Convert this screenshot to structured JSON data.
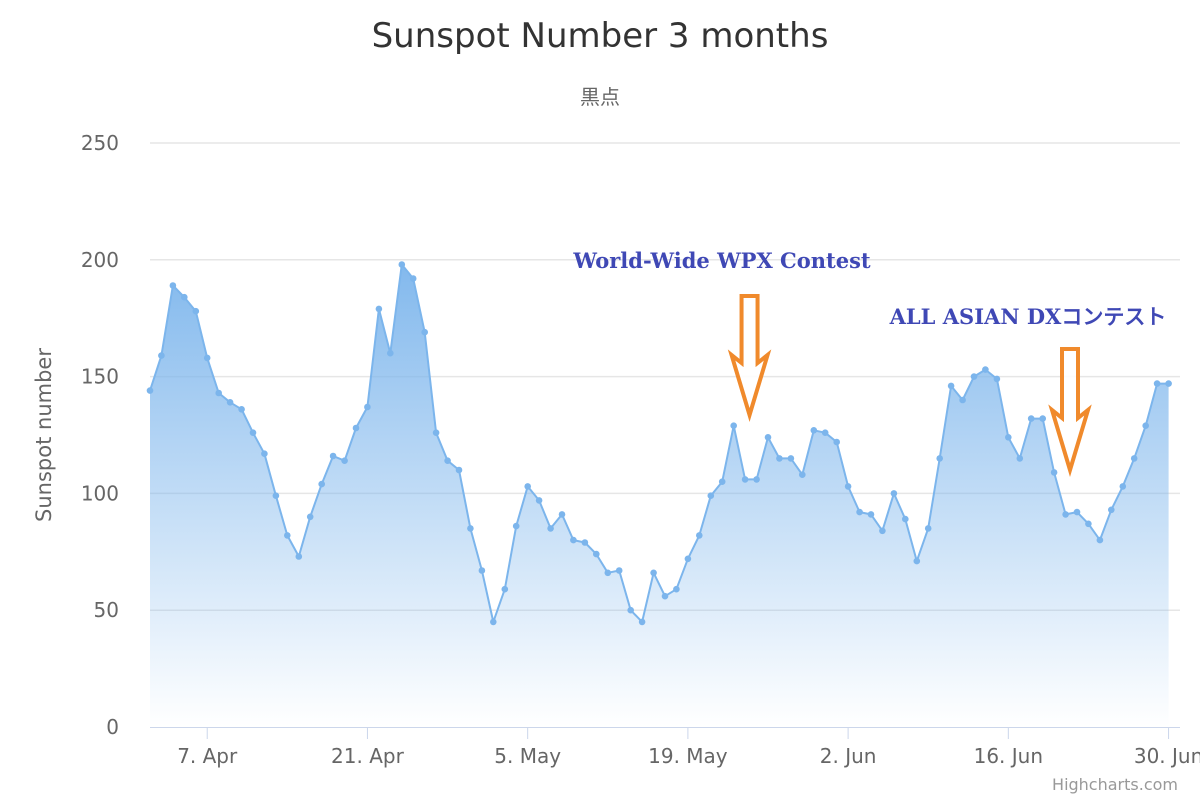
{
  "chart_data": {
    "type": "area",
    "title": "Sunspot Number 3 months",
    "subtitle": "黒点",
    "ylabel": "Sunspot number",
    "xlabel": "",
    "ylim": [
      0,
      250
    ],
    "yticks": [
      0,
      50,
      100,
      150,
      200,
      250
    ],
    "x_start": "2019-04-02",
    "x_end": "2019-07-01",
    "xticks": [
      {
        "date": "2019-04-07",
        "label": "7. Apr"
      },
      {
        "date": "2019-04-21",
        "label": "21. Apr"
      },
      {
        "date": "2019-05-05",
        "label": "5. May"
      },
      {
        "date": "2019-05-19",
        "label": "19. May"
      },
      {
        "date": "2019-06-02",
        "label": "2. Jun"
      },
      {
        "date": "2019-06-16",
        "label": "16. Jun"
      },
      {
        "date": "2019-06-30",
        "label": "30. Jun"
      }
    ],
    "grid": true,
    "legend": "none",
    "colors": {
      "line": "#7cb5ec",
      "fill_top": "#7cb5ec",
      "grid": "#e6e6e6",
      "axis": "#ccd6eb"
    },
    "series": [
      {
        "name": "",
        "values": [
          [
            "2019-04-02",
            144
          ],
          [
            "2019-04-03",
            159
          ],
          [
            "2019-04-04",
            189
          ],
          [
            "2019-04-05",
            184
          ],
          [
            "2019-04-06",
            178
          ],
          [
            "2019-04-07",
            158
          ],
          [
            "2019-04-08",
            143
          ],
          [
            "2019-04-09",
            139
          ],
          [
            "2019-04-10",
            136
          ],
          [
            "2019-04-11",
            126
          ],
          [
            "2019-04-12",
            117
          ],
          [
            "2019-04-13",
            99
          ],
          [
            "2019-04-14",
            82
          ],
          [
            "2019-04-15",
            73
          ],
          [
            "2019-04-16",
            90
          ],
          [
            "2019-04-17",
            104
          ],
          [
            "2019-04-18",
            116
          ],
          [
            "2019-04-19",
            114
          ],
          [
            "2019-04-20",
            128
          ],
          [
            "2019-04-21",
            137
          ],
          [
            "2019-04-22",
            179
          ],
          [
            "2019-04-23",
            160
          ],
          [
            "2019-04-24",
            198
          ],
          [
            "2019-04-25",
            192
          ],
          [
            "2019-04-26",
            169
          ],
          [
            "2019-04-27",
            126
          ],
          [
            "2019-04-28",
            114
          ],
          [
            "2019-04-29",
            110
          ],
          [
            "2019-04-30",
            85
          ],
          [
            "2019-05-01",
            67
          ],
          [
            "2019-05-02",
            45
          ],
          [
            "2019-05-03",
            59
          ],
          [
            "2019-05-04",
            86
          ],
          [
            "2019-05-05",
            103
          ],
          [
            "2019-05-06",
            97
          ],
          [
            "2019-05-07",
            85
          ],
          [
            "2019-05-08",
            91
          ],
          [
            "2019-05-09",
            80
          ],
          [
            "2019-05-10",
            79
          ],
          [
            "2019-05-11",
            74
          ],
          [
            "2019-05-12",
            66
          ],
          [
            "2019-05-13",
            67
          ],
          [
            "2019-05-14",
            50
          ],
          [
            "2019-05-15",
            45
          ],
          [
            "2019-05-16",
            66
          ],
          [
            "2019-05-17",
            56
          ],
          [
            "2019-05-18",
            59
          ],
          [
            "2019-05-19",
            72
          ],
          [
            "2019-05-20",
            82
          ],
          [
            "2019-05-21",
            99
          ],
          [
            "2019-05-22",
            105
          ],
          [
            "2019-05-23",
            129
          ],
          [
            "2019-05-24",
            106
          ],
          [
            "2019-05-25",
            106
          ],
          [
            "2019-05-26",
            124
          ],
          [
            "2019-05-27",
            115
          ],
          [
            "2019-05-28",
            115
          ],
          [
            "2019-05-29",
            108
          ],
          [
            "2019-05-30",
            127
          ],
          [
            "2019-05-31",
            126
          ],
          [
            "2019-06-01",
            122
          ],
          [
            "2019-06-02",
            103
          ],
          [
            "2019-06-03",
            92
          ],
          [
            "2019-06-04",
            91
          ],
          [
            "2019-06-05",
            84
          ],
          [
            "2019-06-06",
            100
          ],
          [
            "2019-06-07",
            89
          ],
          [
            "2019-06-08",
            71
          ],
          [
            "2019-06-09",
            85
          ],
          [
            "2019-06-10",
            115
          ],
          [
            "2019-06-11",
            146
          ],
          [
            "2019-06-12",
            140
          ],
          [
            "2019-06-13",
            150
          ],
          [
            "2019-06-14",
            153
          ],
          [
            "2019-06-15",
            149
          ],
          [
            "2019-06-16",
            124
          ],
          [
            "2019-06-17",
            115
          ],
          [
            "2019-06-18",
            132
          ],
          [
            "2019-06-19",
            132
          ],
          [
            "2019-06-20",
            109
          ],
          [
            "2019-06-21",
            91
          ],
          [
            "2019-06-22",
            92
          ],
          [
            "2019-06-23",
            87
          ],
          [
            "2019-06-24",
            80
          ],
          [
            "2019-06-25",
            93
          ],
          [
            "2019-06-26",
            103
          ],
          [
            "2019-06-27",
            115
          ],
          [
            "2019-06-28",
            129
          ],
          [
            "2019-06-29",
            147
          ],
          [
            "2019-06-30",
            147
          ]
        ]
      }
    ],
    "annotations": [
      {
        "text": "World-Wide WPX Contest",
        "arrow_date": "2019-05-25",
        "color": "#3f48b5",
        "arrow_color": "#f08a2c"
      },
      {
        "text": "ALL ASIAN DXコンテスト",
        "arrow_date": "2019-06-22",
        "color": "#3f48b5",
        "arrow_color": "#f08a2c"
      }
    ],
    "credits": "Highcharts.com"
  }
}
